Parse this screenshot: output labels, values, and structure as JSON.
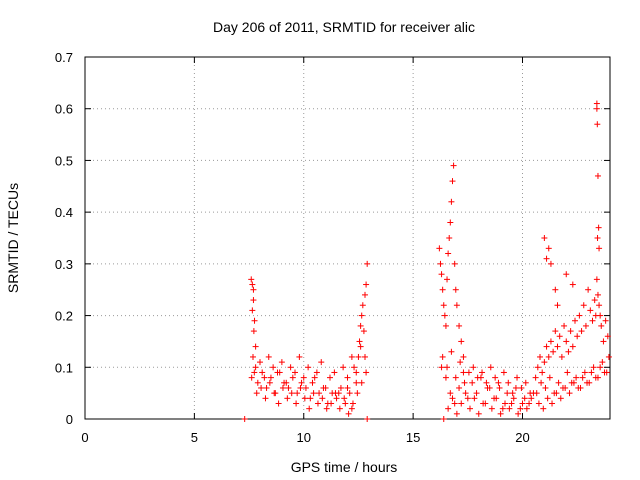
{
  "chart_data": {
    "type": "scatter",
    "title": "Day 206 of 2011, SRMTID for receiver alic",
    "xlabel": "GPS time / hours",
    "ylabel": "SRMTID / TECUs",
    "xlim": [
      0,
      24
    ],
    "ylim": [
      0,
      0.7
    ],
    "xticks": [
      0,
      5,
      10,
      15,
      20
    ],
    "xtick_labels": [
      "0",
      "5",
      "10",
      "15",
      "20"
    ],
    "yticks": [
      0,
      0.1,
      0.2,
      0.3,
      0.4,
      0.5,
      0.6,
      0.7
    ],
    "ytick_labels": [
      "0",
      "0.1",
      "0.2",
      "0.3",
      "0.4",
      "0.5",
      "0.6",
      "0.7"
    ],
    "grid": true,
    "marker": "+",
    "color": "#ff0000",
    "series": [
      {
        "name": "SRMTID",
        "x": [
          7.3,
          7.6,
          7.65,
          7.7,
          7.75,
          7.8,
          7.7,
          7.65,
          7.72,
          7.68,
          7.74,
          7.62,
          7.9,
          8.1,
          8.3,
          8.5,
          8.7,
          8.9,
          9.1,
          9.3,
          9.5,
          9.7,
          9.9,
          10.1,
          10.3,
          10.5,
          10.7,
          10.9,
          11.1,
          11.3,
          11.5,
          11.7,
          11.9,
          12.0,
          12.1,
          12.2,
          12.3,
          12.4,
          12.5,
          12.55,
          12.6,
          12.65,
          12.7,
          12.75,
          12.8,
          12.85,
          12.9,
          12.9,
          7.8,
          8.0,
          8.2,
          8.4,
          8.6,
          8.8,
          9.0,
          9.2,
          9.4,
          9.6,
          9.8,
          10.0,
          10.2,
          10.4,
          10.6,
          10.8,
          11.0,
          11.2,
          11.4,
          11.6,
          11.8,
          12.0,
          12.2,
          12.4,
          12.6,
          12.8,
          7.85,
          8.05,
          8.25,
          8.45,
          8.65,
          8.85,
          9.05,
          9.25,
          9.45,
          9.65,
          9.85,
          10.05,
          10.25,
          10.45,
          10.65,
          10.85,
          11.05,
          11.25,
          11.45,
          11.65,
          11.85,
          12.05,
          12.25,
          12.45,
          12.65,
          12.85,
          16.2,
          16.25,
          16.3,
          16.35,
          16.4,
          16.45,
          16.5,
          16.55,
          16.6,
          16.65,
          16.7,
          16.75,
          16.8,
          16.85,
          16.9,
          16.95,
          17.0,
          17.1,
          17.2,
          17.3,
          16.3,
          16.5,
          16.7,
          16.9,
          17.1,
          17.3,
          17.5,
          17.7,
          17.9,
          18.1,
          18.3,
          18.5,
          18.7,
          18.9,
          19.1,
          19.3,
          19.5,
          19.7,
          19.9,
          20.1,
          20.3,
          20.5,
          16.4,
          16.6,
          16.8,
          17.0,
          17.2,
          17.4,
          17.6,
          17.8,
          18.0,
          18.2,
          18.4,
          18.6,
          18.8,
          19.0,
          19.2,
          19.4,
          19.6,
          19.8,
          20.0,
          20.2,
          20.4,
          16.35,
          16.55,
          16.75,
          16.95,
          17.15,
          17.35,
          17.55,
          17.75,
          17.95,
          18.15,
          18.35,
          18.55,
          18.75,
          18.95,
          19.15,
          19.35,
          19.55,
          19.75,
          19.95,
          20.15,
          20.35,
          20.6,
          20.7,
          20.8,
          20.9,
          21.0,
          21.1,
          21.2,
          21.3,
          21.4,
          21.5,
          21.6,
          21.7,
          21.8,
          21.9,
          22.0,
          22.1,
          22.2,
          22.3,
          22.4,
          22.5,
          22.6,
          22.7,
          22.8,
          22.9,
          23.0,
          23.1,
          23.2,
          23.3,
          23.35,
          23.4,
          23.45,
          23.5,
          23.55,
          23.6,
          23.7,
          23.8,
          23.9,
          20.65,
          20.85,
          21.05,
          21.25,
          21.45,
          21.65,
          21.85,
          22.05,
          22.25,
          22.45,
          22.65,
          22.85,
          23.05,
          23.25,
          23.45,
          23.65,
          23.85,
          20.75,
          20.95,
          21.15,
          21.35,
          21.55,
          21.75,
          21.95,
          22.15,
          22.35,
          22.55,
          22.75,
          22.95,
          23.15,
          23.35,
          23.55,
          23.75,
          23.95,
          23.4,
          23.42,
          23.45,
          23.48,
          23.5,
          23.4,
          23.43,
          21.0,
          21.2,
          21.3,
          21.5,
          21.1,
          22.0,
          22.3,
          21.6
        ],
        "y": [
          0.0,
          0.27,
          0.26,
          0.23,
          0.19,
          0.14,
          0.25,
          0.21,
          0.17,
          0.12,
          0.09,
          0.08,
          0.07,
          0.09,
          0.06,
          0.08,
          0.05,
          0.09,
          0.07,
          0.06,
          0.08,
          0.05,
          0.07,
          0.06,
          0.04,
          0.08,
          0.05,
          0.06,
          0.03,
          0.05,
          0.04,
          0.06,
          0.03,
          0.08,
          0.05,
          0.02,
          0.1,
          0.07,
          0.12,
          0.15,
          0.18,
          0.2,
          0.22,
          0.17,
          0.24,
          0.26,
          0.3,
          0.0,
          0.1,
          0.11,
          0.08,
          0.12,
          0.1,
          0.09,
          0.11,
          0.07,
          0.1,
          0.09,
          0.12,
          0.08,
          0.1,
          0.07,
          0.09,
          0.11,
          0.06,
          0.08,
          0.09,
          0.05,
          0.1,
          0.06,
          0.12,
          0.09,
          0.14,
          0.12,
          0.05,
          0.06,
          0.04,
          0.07,
          0.05,
          0.03,
          0.06,
          0.04,
          0.05,
          0.03,
          0.06,
          0.04,
          0.02,
          0.05,
          0.03,
          0.04,
          0.02,
          0.03,
          0.05,
          0.02,
          0.04,
          0.01,
          0.03,
          0.05,
          0.07,
          0.09,
          0.33,
          0.3,
          0.28,
          0.25,
          0.22,
          0.2,
          0.18,
          0.27,
          0.32,
          0.35,
          0.38,
          0.42,
          0.46,
          0.49,
          0.3,
          0.25,
          0.22,
          0.18,
          0.15,
          0.12,
          0.1,
          0.08,
          0.05,
          0.03,
          0.06,
          0.09,
          0.04,
          0.07,
          0.05,
          0.08,
          0.03,
          0.06,
          0.04,
          0.07,
          0.02,
          0.05,
          0.03,
          0.06,
          0.02,
          0.04,
          0.03,
          0.05,
          0.0,
          0.02,
          0.04,
          0.01,
          0.03,
          0.05,
          0.02,
          0.04,
          0.01,
          0.03,
          0.06,
          0.02,
          0.04,
          0.01,
          0.03,
          0.02,
          0.04,
          0.01,
          0.03,
          0.02,
          0.04,
          0.12,
          0.1,
          0.13,
          0.08,
          0.11,
          0.07,
          0.09,
          0.1,
          0.08,
          0.09,
          0.07,
          0.1,
          0.08,
          0.06,
          0.09,
          0.07,
          0.05,
          0.08,
          0.06,
          0.07,
          0.05,
          0.08,
          0.1,
          0.12,
          0.09,
          0.11,
          0.14,
          0.12,
          0.15,
          0.13,
          0.17,
          0.14,
          0.16,
          0.12,
          0.18,
          0.15,
          0.13,
          0.17,
          0.14,
          0.19,
          0.16,
          0.2,
          0.17,
          0.22,
          0.18,
          0.25,
          0.21,
          0.19,
          0.23,
          0.2,
          0.27,
          0.24,
          0.22,
          0.2,
          0.18,
          0.15,
          0.19,
          0.16,
          0.05,
          0.07,
          0.06,
          0.08,
          0.05,
          0.07,
          0.06,
          0.09,
          0.07,
          0.08,
          0.06,
          0.09,
          0.07,
          0.1,
          0.08,
          0.11,
          0.09,
          0.03,
          0.02,
          0.04,
          0.03,
          0.05,
          0.04,
          0.06,
          0.05,
          0.07,
          0.06,
          0.08,
          0.07,
          0.09,
          0.08,
          0.1,
          0.09,
          0.12,
          0.6,
          0.57,
          0.47,
          0.37,
          0.33,
          0.61,
          0.35,
          0.35,
          0.33,
          0.3,
          0.25,
          0.31,
          0.28,
          0.26,
          0.22
        ]
      }
    ]
  }
}
